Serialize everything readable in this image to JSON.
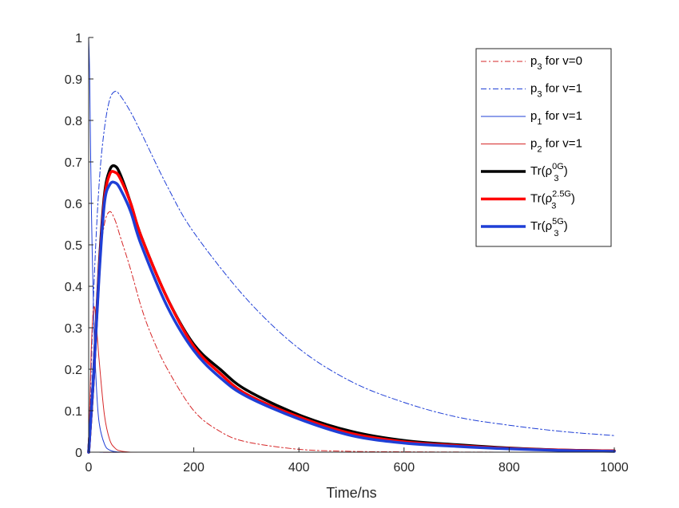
{
  "chart_data": {
    "type": "line",
    "title": "",
    "xlabel": "Time/ns",
    "ylabel": "",
    "xlim": [
      0,
      1000
    ],
    "ylim": [
      0,
      1
    ],
    "xticks": [
      0,
      200,
      400,
      600,
      800,
      1000
    ],
    "yticks": [
      0,
      0.1,
      0.2,
      0.3,
      0.4,
      0.5,
      0.6,
      0.7,
      0.8,
      0.9,
      1
    ],
    "xtick_labels": [
      "0",
      "200",
      "400",
      "600",
      "800",
      "1000"
    ],
    "ytick_labels": [
      "0",
      "0.1",
      "0.2",
      "0.3",
      "0.4",
      "0.5",
      "0.6",
      "0.7",
      "0.8",
      "0.9",
      "1"
    ],
    "grid": false,
    "legend_position": "top-right",
    "series": [
      {
        "name": "p3 for v=0",
        "legend": {
          "base": "p",
          "sub": "3",
          "rest": " for v=0"
        },
        "color": "#d62728",
        "style": "dashdot",
        "width": 1,
        "x": [
          0,
          10,
          20,
          30,
          40,
          50,
          60,
          80,
          100,
          120,
          150,
          200,
          250,
          300,
          400,
          500,
          600,
          800,
          1000
        ],
        "y": [
          0,
          0.25,
          0.45,
          0.55,
          0.58,
          0.56,
          0.52,
          0.44,
          0.35,
          0.28,
          0.2,
          0.1,
          0.05,
          0.025,
          0.007,
          0.002,
          0.001,
          0,
          0
        ]
      },
      {
        "name": "p3 for v=1",
        "legend": {
          "base": "p",
          "sub": "3",
          "rest": " for v=1"
        },
        "color": "#1f3fd6",
        "style": "dashdot",
        "width": 1,
        "x": [
          0,
          10,
          20,
          30,
          40,
          50,
          60,
          80,
          100,
          150,
          200,
          300,
          400,
          500,
          600,
          700,
          800,
          900,
          1000
        ],
        "y": [
          0,
          0.4,
          0.65,
          0.78,
          0.85,
          0.87,
          0.86,
          0.82,
          0.77,
          0.64,
          0.53,
          0.37,
          0.25,
          0.17,
          0.12,
          0.085,
          0.065,
          0.05,
          0.04
        ]
      },
      {
        "name": "p1 for v=1",
        "legend": {
          "base": "p",
          "sub": "1",
          "rest": " for v=1"
        },
        "color": "#1f3fd6",
        "style": "solid",
        "width": 1,
        "x": [
          0,
          2,
          5,
          10,
          15,
          20,
          30,
          40,
          60,
          100,
          1000
        ],
        "y": [
          1,
          0.9,
          0.6,
          0.3,
          0.15,
          0.07,
          0.02,
          0.005,
          0,
          0,
          0
        ]
      },
      {
        "name": "p2 for v=1",
        "legend": {
          "base": "p",
          "sub": "2",
          "rest": " for v=1"
        },
        "color": "#d62728",
        "style": "solid",
        "width": 1,
        "x": [
          0,
          5,
          10,
          15,
          20,
          30,
          40,
          50,
          60,
          80,
          100,
          1000
        ],
        "y": [
          0,
          0.25,
          0.35,
          0.3,
          0.22,
          0.09,
          0.03,
          0.01,
          0.003,
          0,
          0,
          0
        ]
      },
      {
        "name": "Tr(ρ3^0G)",
        "legend": {
          "base": "Tr(ρ",
          "sub": "3",
          "sup": "0G",
          "rest": ")"
        },
        "color": "#000000",
        "style": "solid",
        "width": 3.5,
        "x": [
          0,
          10,
          20,
          30,
          40,
          50,
          60,
          80,
          100,
          150,
          200,
          250,
          300,
          400,
          500,
          600,
          700,
          800,
          900,
          1000
        ],
        "y": [
          0,
          0.2,
          0.45,
          0.62,
          0.68,
          0.69,
          0.67,
          0.6,
          0.52,
          0.37,
          0.26,
          0.2,
          0.15,
          0.09,
          0.05,
          0.028,
          0.018,
          0.01,
          0.005,
          0.003
        ]
      },
      {
        "name": "Tr(ρ3^2.5G)",
        "legend": {
          "base": "Tr(ρ",
          "sub": "3",
          "sup": "2.5G",
          "rest": ")"
        },
        "color": "#ff0000",
        "style": "solid",
        "width": 3.5,
        "x": [
          0,
          10,
          20,
          30,
          40,
          50,
          60,
          80,
          100,
          150,
          200,
          250,
          300,
          400,
          500,
          600,
          700,
          800,
          900,
          1000
        ],
        "y": [
          0,
          0.2,
          0.44,
          0.61,
          0.67,
          0.675,
          0.66,
          0.6,
          0.52,
          0.37,
          0.255,
          0.19,
          0.14,
          0.085,
          0.045,
          0.025,
          0.016,
          0.009,
          0.005,
          0.003
        ]
      },
      {
        "name": "Tr(ρ3^5G)",
        "legend": {
          "base": "Tr(ρ",
          "sub": "3",
          "sup": "5G",
          "rest": ")"
        },
        "color": "#1f3fd6",
        "style": "solid",
        "width": 3.5,
        "x": [
          0,
          10,
          20,
          30,
          40,
          50,
          60,
          80,
          100,
          150,
          200,
          250,
          300,
          400,
          500,
          600,
          700,
          800,
          900,
          1000
        ],
        "y": [
          0,
          0.2,
          0.43,
          0.6,
          0.645,
          0.65,
          0.635,
          0.58,
          0.5,
          0.35,
          0.245,
          0.18,
          0.135,
          0.08,
          0.04,
          0.022,
          0.014,
          0.008,
          0.004,
          0.002
        ]
      }
    ]
  }
}
